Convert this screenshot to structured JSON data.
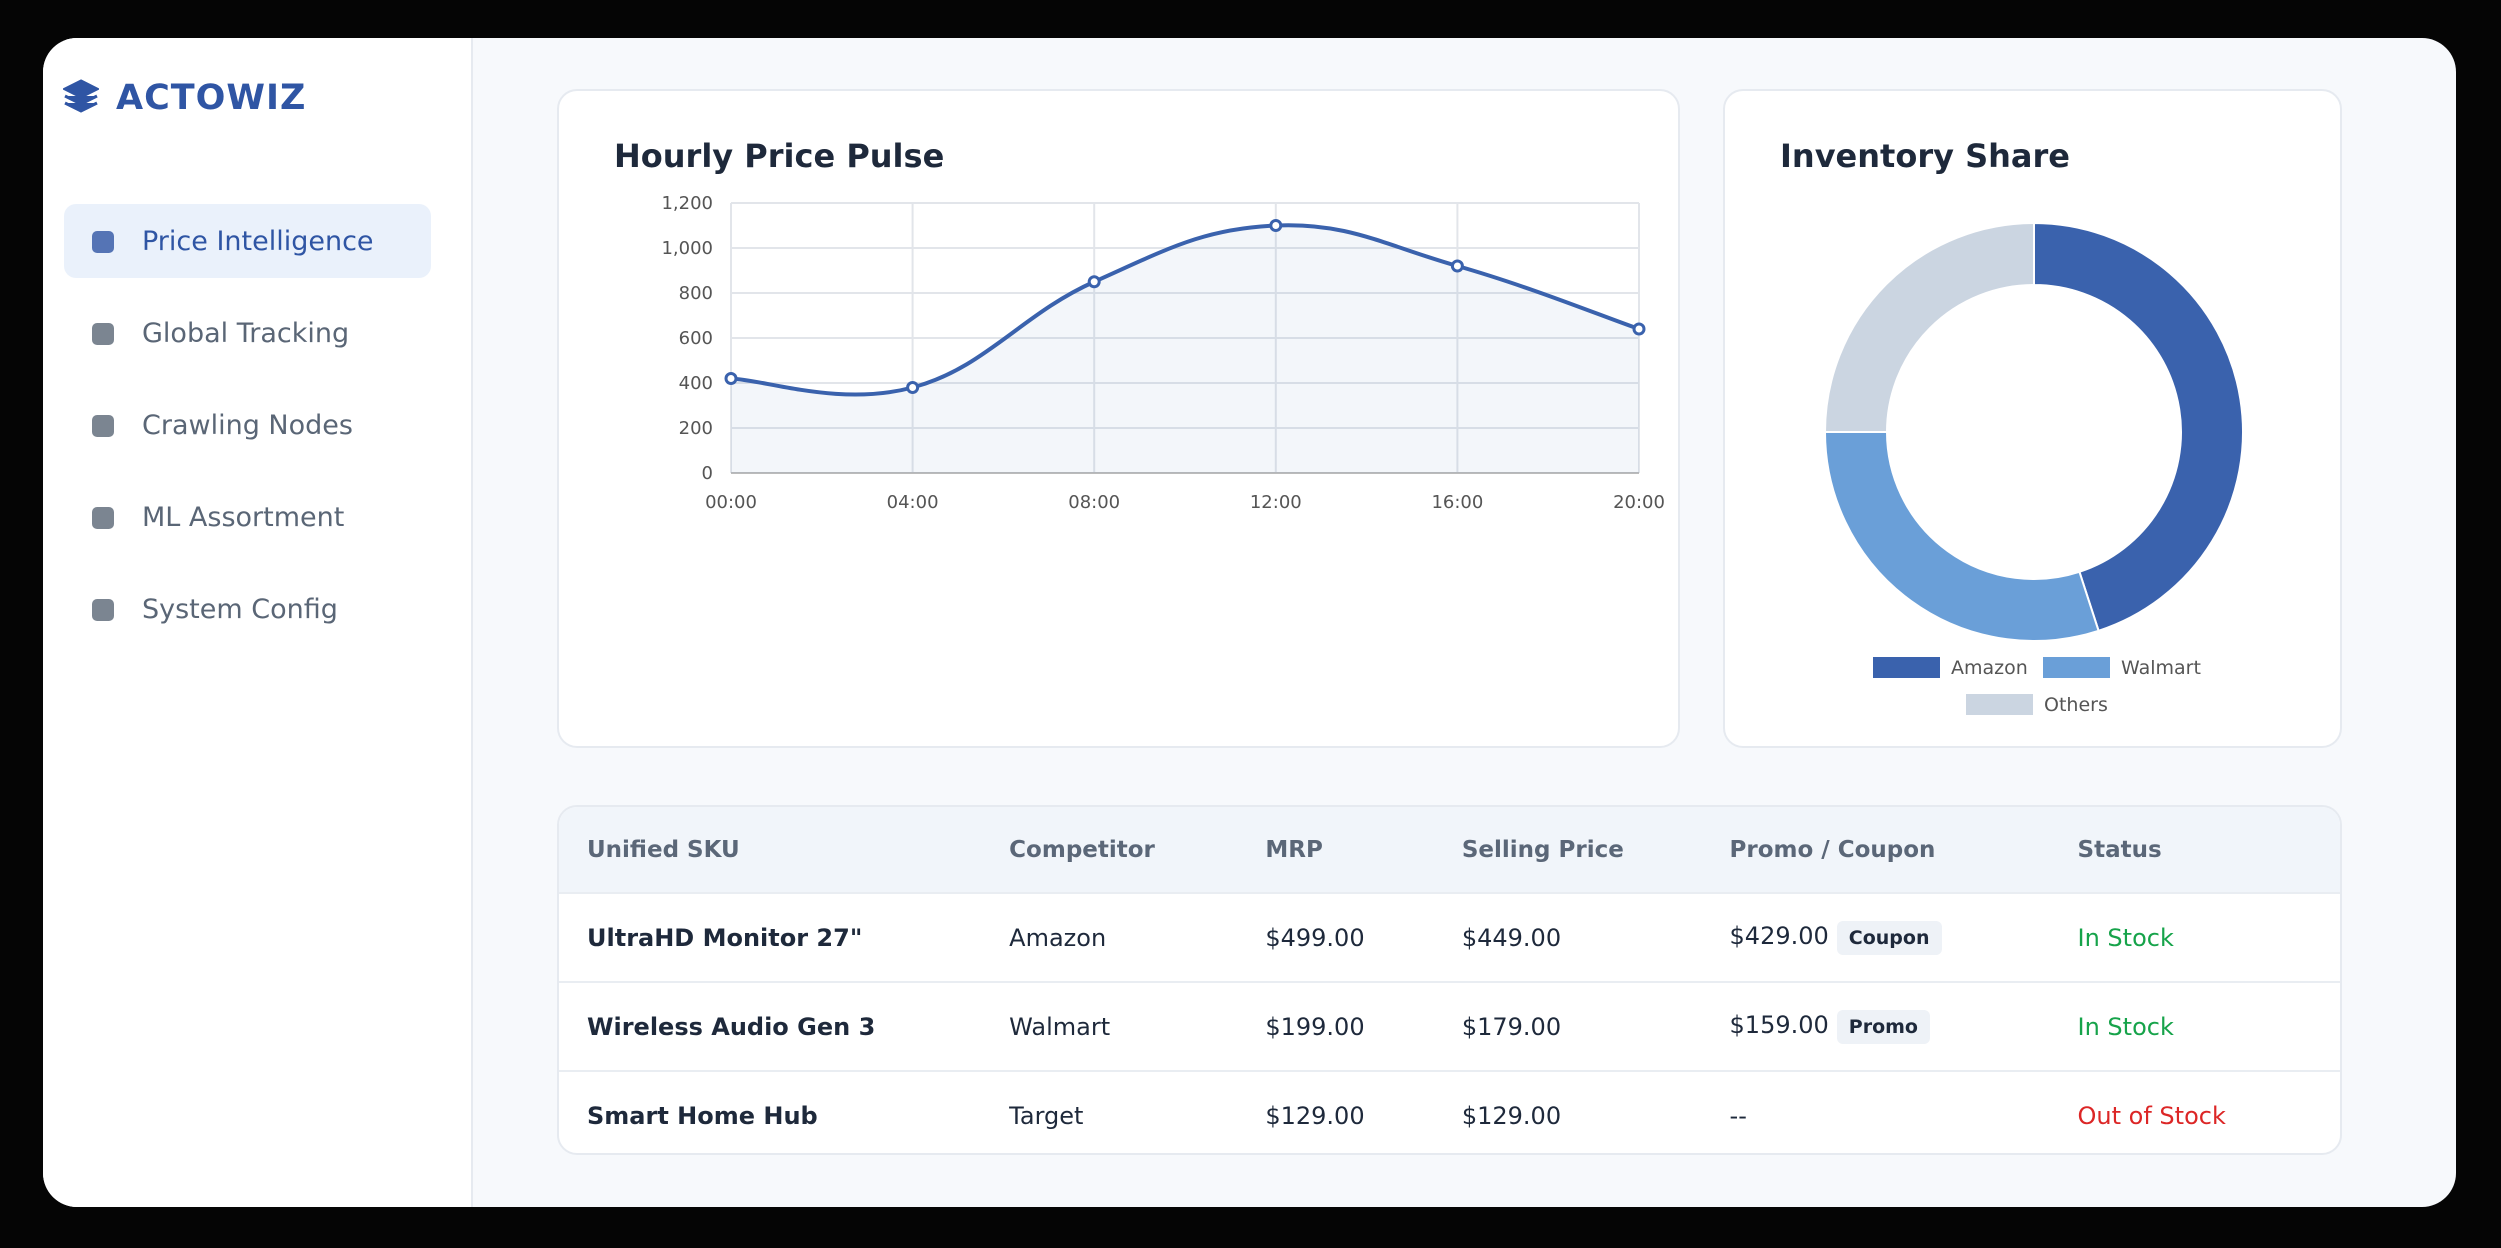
{
  "brand": "ACTOWIZ",
  "nav": [
    "Price Intelligence",
    "Global Tracking",
    "Crawling Nodes",
    "ML Assortment",
    "System Config"
  ],
  "chart_data": [
    {
      "type": "line",
      "title": "Hourly Price Pulse",
      "categories": [
        "00:00",
        "04:00",
        "08:00",
        "12:00",
        "16:00",
        "20:00"
      ],
      "series": [
        {
          "color": "#3a62ad",
          "values": [
            420,
            380,
            850,
            1100,
            920,
            640
          ]
        }
      ],
      "ylim": [
        0,
        1200
      ],
      "yticks": [
        0,
        200,
        400,
        600,
        800,
        {
          "value": 1000,
          "label": "1,000"
        },
        {
          "value": 1200,
          "label": "1,200"
        }
      ],
      "grid": true
    },
    {
      "type": "pie",
      "title": "Inventory Share",
      "categories": [
        "Amazon",
        "Walmart",
        "Others"
      ],
      "values": [
        45,
        30,
        25
      ],
      "colors": [
        "#3a62ad",
        "#6a9fd8",
        "#cbd5e1"
      ],
      "legend": "bottom"
    }
  ],
  "table": {
    "columns": [
      "Unified SKU",
      "Competitor",
      "MRP",
      "Selling Price",
      "Promo / Coupon",
      "Status"
    ],
    "rows": [
      {
        "sku": "UltraHD Monitor 27\"",
        "competitor": "Amazon",
        "mrp": "$499.00",
        "selling": "$449.00",
        "promo": "$429.00",
        "badge": "Coupon",
        "status": "In Stock",
        "color": "#16a34a"
      },
      {
        "sku": "Wireless Audio Gen 3",
        "competitor": "Walmart",
        "mrp": "$199.00",
        "selling": "$179.00",
        "promo": "$159.00",
        "badge": "Promo",
        "status": "In Stock",
        "color": "#16a34a"
      },
      {
        "sku": "Smart Home Hub",
        "competitor": "Target",
        "mrp": "$129.00",
        "selling": "$129.00",
        "promo": "--",
        "status": "Out of Stock",
        "color": "#dc2626"
      }
    ]
  }
}
